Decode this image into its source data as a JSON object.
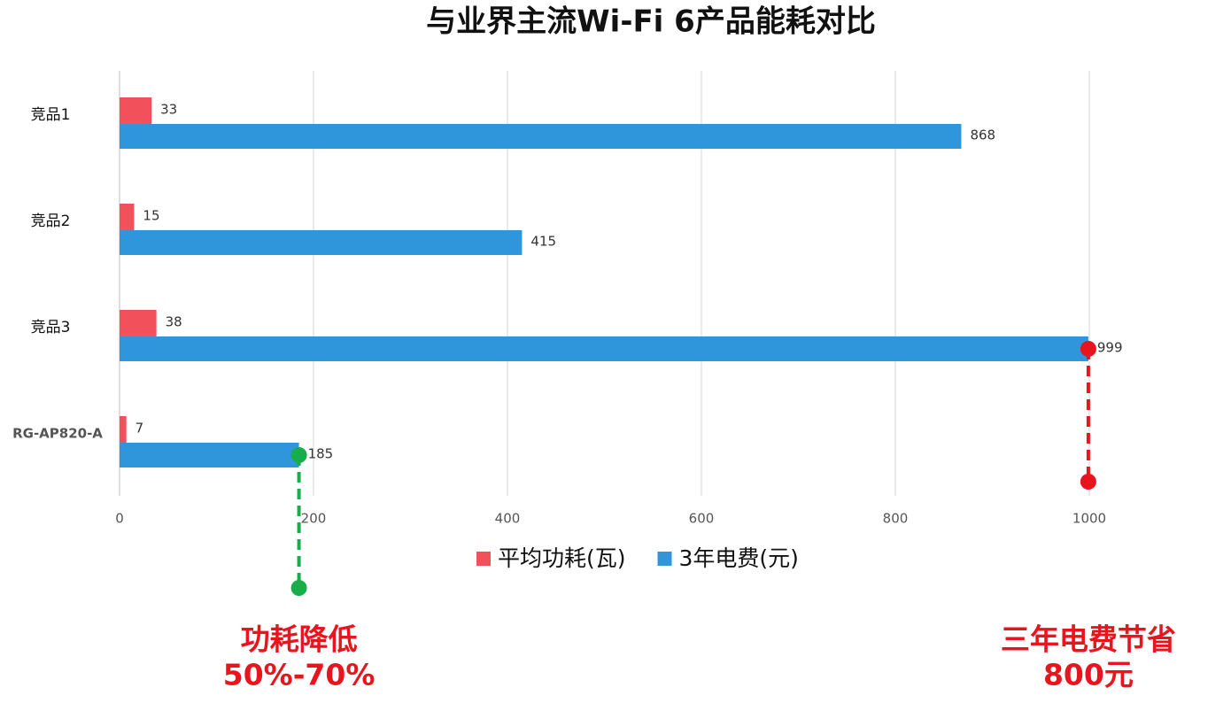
{
  "chart_data": {
    "type": "hbar",
    "title": "与业界主流Wi-Fi 6产品能耗对比",
    "categories": [
      "竞品1",
      "竞品2",
      "竞品3",
      "RG-AP820-A"
    ],
    "series": [
      {
        "name": "平均功耗(瓦)",
        "color": "#f2505a",
        "values": [
          33,
          15,
          38,
          7
        ]
      },
      {
        "name": "3年电费(元)",
        "color": "#3096dc",
        "values": [
          868,
          415,
          999,
          185
        ]
      }
    ],
    "xlim": [
      0,
      1000
    ],
    "xticks": [
      0,
      200,
      400,
      600,
      800,
      1000
    ],
    "grid": true,
    "legend": "bottom",
    "annotations": [
      {
        "lines": [
          "功耗降低",
          "50%-70%"
        ],
        "color": "#18ad4a",
        "line_color": "#e8141e"
      },
      {
        "lines": [
          "三年电费节省",
          "800元"
        ],
        "color": "#e8141e",
        "line_color": "#e8141e"
      }
    ]
  }
}
